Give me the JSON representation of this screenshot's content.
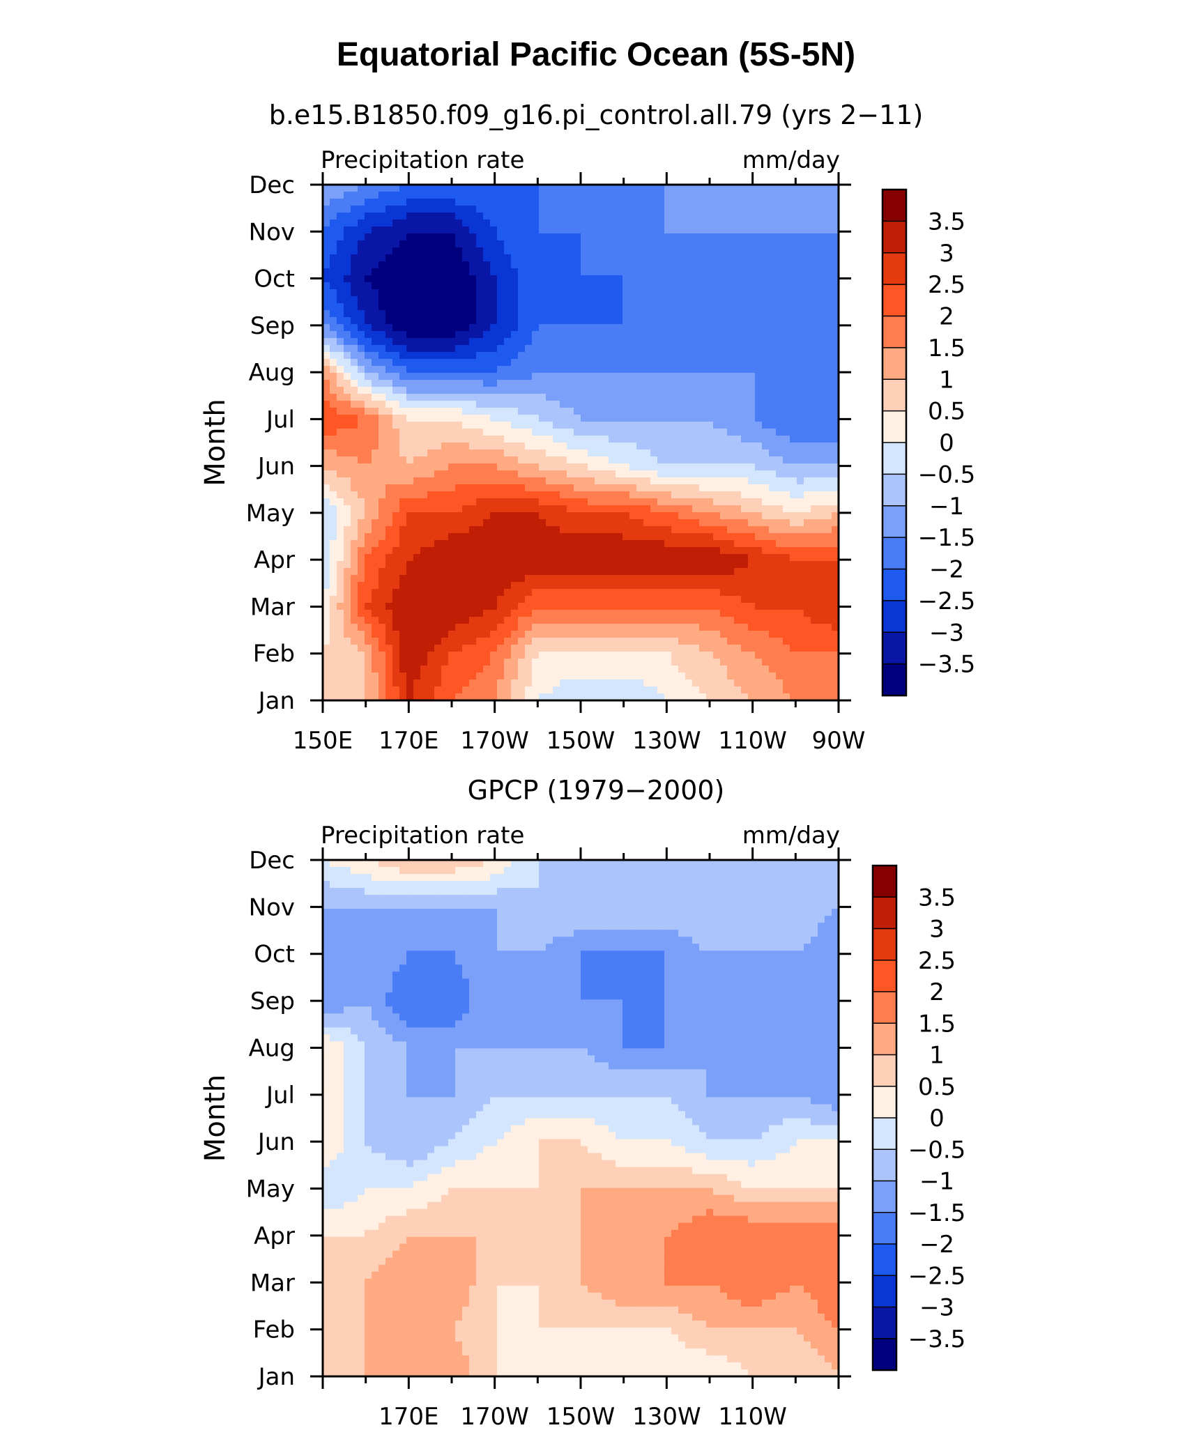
{
  "title": "Equatorial Pacific Ocean (5S-5N)",
  "colors": {
    "levels": [
      -3.5,
      -3,
      -2.5,
      -2,
      -1.5,
      -1,
      -0.5,
      0,
      0.5,
      1,
      1.5,
      2,
      2.5,
      3,
      3.5
    ],
    "palette": [
      "#00007f",
      "#0a16a6",
      "#0a36d6",
      "#1f5af0",
      "#4a7cf5",
      "#7aa0fa",
      "#abc4fb",
      "#d4e6fd",
      "#fff0e3",
      "#ffd0b8",
      "#ffaa82",
      "#ff7d4f",
      "#ff5625",
      "#e53a10",
      "#c01e05",
      "#870000"
    ]
  },
  "colorbar_labels": [
    "3.5",
    "3",
    "2.5",
    "2",
    "1.5",
    "1",
    "0.5",
    "0",
    "−0.5",
    "−1",
    "−1.5",
    "−2",
    "−2.5",
    "−3",
    "−3.5"
  ],
  "panels": [
    {
      "title": "b.e15.B1850.f09_g16.pi_control.all.79 (yrs 2−11)",
      "left_label": "Precipitation rate",
      "right_label": "mm/day",
      "ylabel": "Month",
      "y_tick_labels": [
        "Jan",
        "Feb",
        "Mar",
        "Apr",
        "May",
        "Jun",
        "Jul",
        "Aug",
        "Sep",
        "Oct",
        "Nov",
        "Dec"
      ],
      "x_tick_labels": [
        "150E",
        "170E",
        "170W",
        "150W",
        "130W",
        "110W",
        "90W"
      ]
    },
    {
      "title": "GPCP (1979−2000)",
      "left_label": "Precipitation rate",
      "right_label": "mm/day",
      "ylabel": "Month",
      "y_tick_labels": [
        "Jan",
        "Feb",
        "Mar",
        "Apr",
        "May",
        "Jun",
        "Jul",
        "Aug",
        "Sep",
        "Oct",
        "Nov",
        "Dec"
      ],
      "x_tick_labels": [
        "170E",
        "170W",
        "150W",
        "130W",
        "110W"
      ]
    }
  ],
  "chart_data": [
    {
      "type": "heatmap",
      "x": [
        150,
        160,
        170,
        180,
        190,
        200,
        210,
        220,
        230,
        240,
        250,
        260,
        270
      ],
      "y": [
        "Jan",
        "Feb",
        "Mar",
        "Apr",
        "May",
        "Jun",
        "Jul",
        "Aug",
        "Sep",
        "Oct",
        "Nov",
        "Dec"
      ],
      "units": "mm/day",
      "z": [
        [
          0.5,
          1.0,
          3.0,
          2.0,
          1.5,
          0.0,
          -0.5,
          -0.5,
          0.0,
          0.5,
          1.0,
          1.5,
          2.0
        ],
        [
          0.5,
          1.0,
          3.5,
          2.5,
          2.0,
          0.5,
          0.5,
          0.5,
          0.5,
          1.0,
          1.5,
          2.0,
          2.0
        ],
        [
          0.0,
          2.5,
          3.5,
          3.5,
          3.0,
          2.0,
          2.0,
          2.0,
          2.0,
          2.0,
          2.5,
          2.5,
          3.0
        ],
        [
          -0.5,
          2.0,
          3.0,
          3.5,
          3.5,
          3.5,
          3.5,
          3.5,
          3.5,
          3.5,
          3.0,
          2.5,
          2.5
        ],
        [
          -0.5,
          1.0,
          2.5,
          2.5,
          3.0,
          3.0,
          2.5,
          2.5,
          2.0,
          1.5,
          1.0,
          0.5,
          1.0
        ],
        [
          1.0,
          1.5,
          1.0,
          1.5,
          1.5,
          1.0,
          0.5,
          0.0,
          -0.5,
          -0.5,
          -0.5,
          -1.0,
          -1.0
        ],
        [
          2.5,
          2.0,
          0.5,
          0.5,
          0.0,
          -0.5,
          -1.0,
          -1.0,
          -1.0,
          -1.0,
          -1.5,
          -2.0,
          -2.0
        ],
        [
          1.5,
          -1.0,
          -2.0,
          -2.0,
          -2.0,
          -1.5,
          -1.5,
          -1.5,
          -1.5,
          -1.5,
          -1.5,
          -2.0,
          -1.5
        ],
        [
          -1.5,
          -3.0,
          -4.0,
          -4.0,
          -3.0,
          -2.0,
          -2.0,
          -2.0,
          -1.5,
          -1.5,
          -1.5,
          -1.5,
          -1.5
        ],
        [
          -2.5,
          -3.5,
          -4.0,
          -4.0,
          -3.0,
          -2.0,
          -2.0,
          -2.0,
          -2.0,
          -1.5,
          -1.5,
          -1.5,
          -2.0
        ],
        [
          -2.0,
          -3.0,
          -3.5,
          -3.5,
          -2.5,
          -2.0,
          -2.0,
          -1.5,
          -1.5,
          -1.5,
          -1.5,
          -1.5,
          -1.5
        ],
        [
          -1.0,
          -1.5,
          -2.0,
          -2.0,
          -2.0,
          -2.0,
          -1.5,
          -1.5,
          -1.5,
          -1.0,
          -1.0,
          -1.0,
          -1.0
        ]
      ]
    },
    {
      "type": "heatmap",
      "x": [
        150,
        160,
        170,
        180,
        190,
        200,
        210,
        220,
        230,
        240,
        250,
        260,
        270
      ],
      "y": [
        "Jan",
        "Feb",
        "Mar",
        "Apr",
        "May",
        "Jun",
        "Jul",
        "Aug",
        "Sep",
        "Oct",
        "Nov",
        "Dec"
      ],
      "units": "mm/day",
      "z": [
        [
          1.0,
          1.0,
          1.0,
          1.5,
          0.5,
          0.0,
          0.0,
          0.0,
          0.0,
          0.0,
          0.5,
          0.5,
          1.0
        ],
        [
          0.5,
          1.0,
          1.5,
          1.0,
          0.5,
          0.5,
          0.5,
          0.5,
          0.5,
          1.0,
          1.0,
          1.0,
          1.5
        ],
        [
          0.5,
          1.0,
          1.5,
          1.5,
          0.5,
          0.5,
          1.0,
          1.5,
          1.5,
          1.5,
          2.0,
          1.5,
          2.0
        ],
        [
          0.5,
          0.5,
          1.0,
          1.0,
          1.0,
          1.0,
          1.0,
          1.5,
          1.5,
          2.0,
          2.0,
          2.0,
          2.0
        ],
        [
          -0.5,
          0.0,
          0.0,
          0.5,
          0.5,
          0.5,
          1.0,
          1.0,
          1.0,
          1.0,
          0.5,
          0.5,
          0.5
        ],
        [
          0.5,
          -0.5,
          -1.0,
          -0.5,
          0.0,
          0.5,
          0.5,
          0.0,
          0.0,
          -0.5,
          -0.5,
          0.0,
          0.0
        ],
        [
          0.5,
          -0.5,
          -1.0,
          -1.0,
          -0.5,
          -0.5,
          -0.5,
          -0.5,
          -0.5,
          -1.0,
          -1.0,
          -1.0,
          -1.5
        ],
        [
          0.5,
          -0.5,
          -1.0,
          -1.0,
          -1.0,
          -1.0,
          -1.0,
          -1.5,
          -1.5,
          -1.0,
          -1.0,
          -1.0,
          -1.5
        ],
        [
          -1.5,
          -1.0,
          -2.0,
          -2.0,
          -1.0,
          -1.0,
          -1.5,
          -1.5,
          -1.5,
          -1.5,
          -1.0,
          -1.0,
          -1.5
        ],
        [
          -1.0,
          -1.0,
          -1.5,
          -1.5,
          -1.0,
          -1.0,
          -1.5,
          -1.5,
          -1.5,
          -1.0,
          -1.0,
          -1.0,
          -1.5
        ],
        [
          -1.0,
          -1.0,
          -1.0,
          -1.0,
          -1.0,
          -0.5,
          -0.5,
          -0.5,
          -0.5,
          -0.5,
          -0.5,
          -0.5,
          -1.0
        ],
        [
          0.0,
          0.5,
          1.0,
          1.0,
          0.5,
          -0.5,
          -0.5,
          -0.5,
          -0.5,
          -0.5,
          -0.5,
          -0.5,
          -0.5
        ]
      ]
    }
  ]
}
